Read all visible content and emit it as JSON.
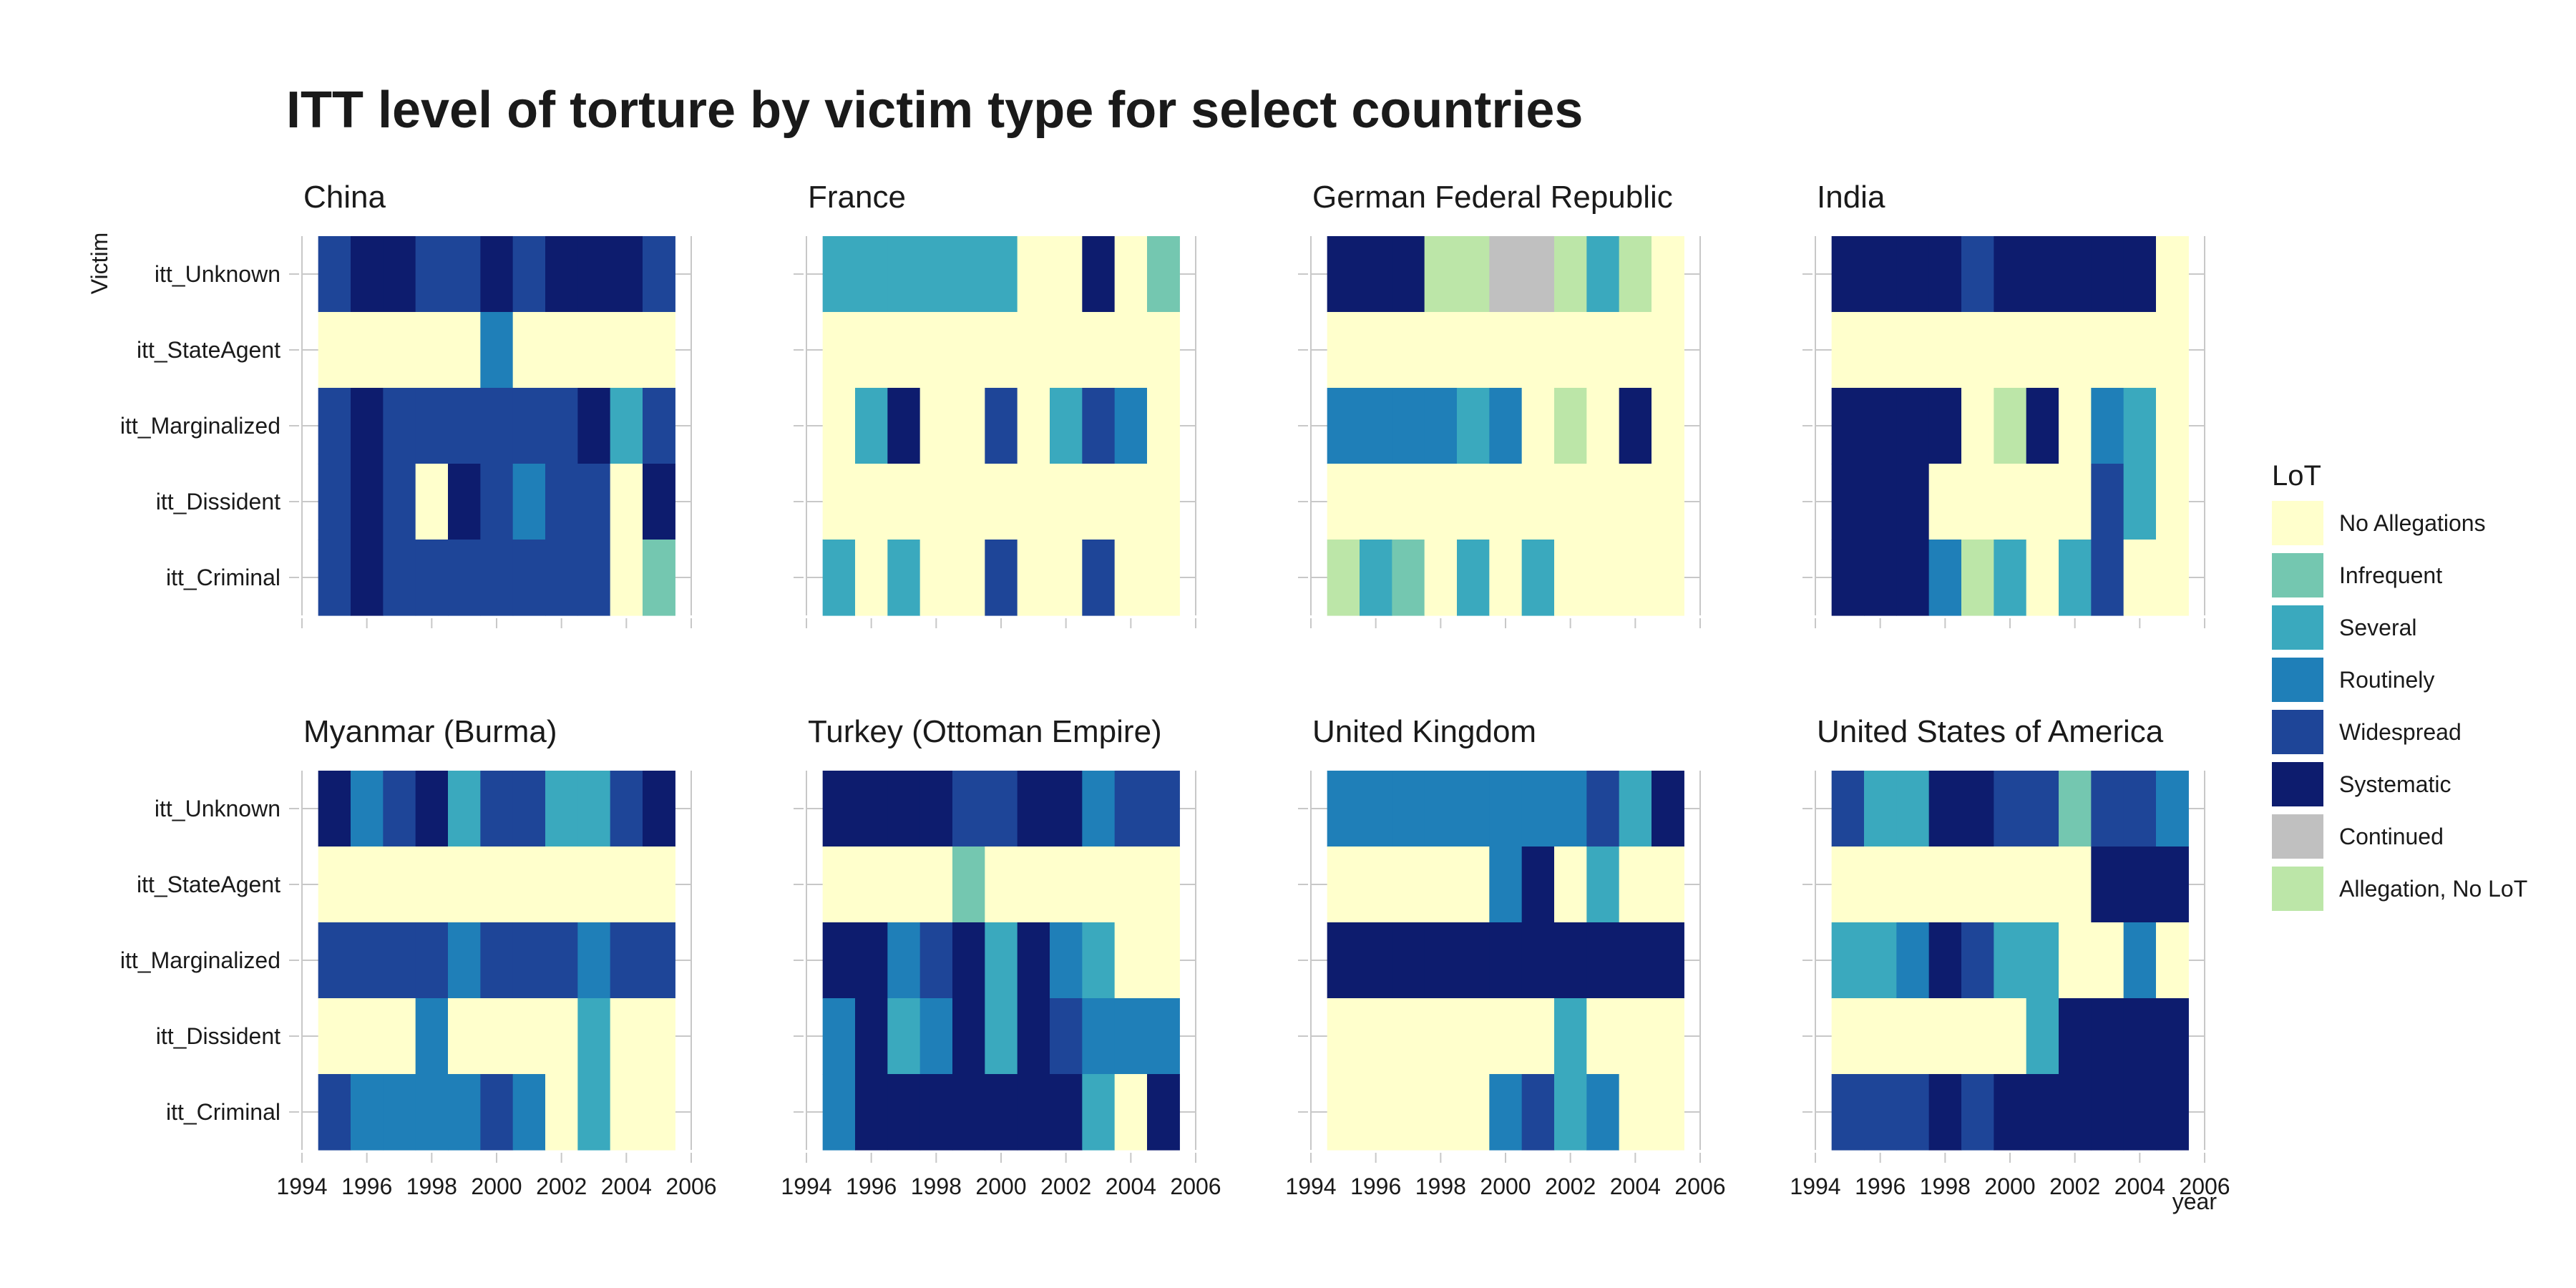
{
  "chart_data": {
    "type": "heatmap",
    "title": "ITT level of torture by victim type for select countries",
    "ylabel": "Victim",
    "xlabel": "year",
    "xlim": [
      1994,
      2006
    ],
    "x_ticks": [
      1994,
      1996,
      1998,
      2000,
      2002,
      2004,
      2006
    ],
    "years": [
      1995,
      1996,
      1997,
      1998,
      1999,
      2000,
      2001,
      2002,
      2003,
      2004,
      2005
    ],
    "rows": [
      "itt_Unknown",
      "itt_StateAgent",
      "itt_Marginalized",
      "itt_Dissident",
      "itt_Criminal"
    ],
    "legend": {
      "title": "LoT",
      "position": "right",
      "levels": [
        {
          "key": "N",
          "label": "No Allegations",
          "color": "#ffffcc"
        },
        {
          "key": "I",
          "label": "Infrequent",
          "color": "#74c7b0"
        },
        {
          "key": "S",
          "label": "Several",
          "color": "#3aa9be"
        },
        {
          "key": "R",
          "label": "Routinely",
          "color": "#1f7fb8"
        },
        {
          "key": "W",
          "label": "Widespread",
          "color": "#1e4598"
        },
        {
          "key": "Y",
          "label": "Systematic",
          "color": "#0d1c6e"
        },
        {
          "key": "C",
          "label": "Continued",
          "color": "#c0c0c0"
        },
        {
          "key": "A",
          "label": "Allegation, No LoT",
          "color": "#bce6a8"
        }
      ]
    },
    "panels": [
      {
        "name": "China",
        "cells": {
          "itt_Unknown": [
            "W",
            "Y",
            "Y",
            "W",
            "W",
            "Y",
            "W",
            "Y",
            "Y",
            "Y",
            "W"
          ],
          "itt_StateAgent": [
            "N",
            "N",
            "N",
            "N",
            "N",
            "R",
            "N",
            "N",
            "N",
            "N",
            "N"
          ],
          "itt_Marginalized": [
            "W",
            "Y",
            "W",
            "W",
            "W",
            "W",
            "W",
            "W",
            "Y",
            "S",
            "W"
          ],
          "itt_Dissident": [
            "W",
            "Y",
            "W",
            "N",
            "Y",
            "W",
            "R",
            "W",
            "W",
            "N",
            "Y"
          ],
          "itt_Criminal": [
            "W",
            "Y",
            "W",
            "W",
            "W",
            "W",
            "W",
            "W",
            "W",
            "N",
            "I"
          ]
        }
      },
      {
        "name": "France",
        "cells": {
          "itt_Unknown": [
            "S",
            "S",
            "S",
            "S",
            "S",
            "S",
            "N",
            "N",
            "Y",
            "N",
            "I"
          ],
          "itt_StateAgent": [
            "N",
            "N",
            "N",
            "N",
            "N",
            "N",
            "N",
            "N",
            "N",
            "N",
            "N"
          ],
          "itt_Marginalized": [
            "N",
            "S",
            "Y",
            "N",
            "N",
            "W",
            "N",
            "S",
            "W",
            "R",
            "N"
          ],
          "itt_Dissident": [
            "N",
            "N",
            "N",
            "N",
            "N",
            "N",
            "N",
            "N",
            "N",
            "N",
            "N"
          ],
          "itt_Criminal": [
            "S",
            "N",
            "S",
            "N",
            "N",
            "W",
            "N",
            "N",
            "W",
            "N",
            "N"
          ]
        }
      },
      {
        "name": "German Federal Republic",
        "cells": {
          "itt_Unknown": [
            "Y",
            "Y",
            "Y",
            "A",
            "A",
            "C",
            "C",
            "A",
            "S",
            "A",
            "N"
          ],
          "itt_StateAgent": [
            "N",
            "N",
            "N",
            "N",
            "N",
            "N",
            "N",
            "N",
            "N",
            "N",
            "N"
          ],
          "itt_Marginalized": [
            "R",
            "R",
            "R",
            "R",
            "S",
            "R",
            "N",
            "A",
            "N",
            "Y",
            "N"
          ],
          "itt_Dissident": [
            "N",
            "N",
            "N",
            "N",
            "N",
            "N",
            "N",
            "N",
            "N",
            "N",
            "N"
          ],
          "itt_Criminal": [
            "A",
            "S",
            "I",
            "N",
            "S",
            "N",
            "S",
            "N",
            "N",
            "N",
            "N"
          ]
        }
      },
      {
        "name": "India",
        "cells": {
          "itt_Unknown": [
            "Y",
            "Y",
            "Y",
            "Y",
            "W",
            "Y",
            "Y",
            "Y",
            "Y",
            "Y",
            "N"
          ],
          "itt_StateAgent": [
            "N",
            "N",
            "N",
            "N",
            "N",
            "N",
            "N",
            "N",
            "N",
            "N",
            "N"
          ],
          "itt_Marginalized": [
            "Y",
            "Y",
            "Y",
            "Y",
            "N",
            "A",
            "Y",
            "N",
            "R",
            "S",
            "N"
          ],
          "itt_Dissident": [
            "Y",
            "Y",
            "Y",
            "N",
            "N",
            "N",
            "N",
            "N",
            "W",
            "S",
            "N"
          ],
          "itt_Criminal": [
            "Y",
            "Y",
            "Y",
            "R",
            "A",
            "S",
            "N",
            "S",
            "W",
            "N",
            "N"
          ]
        }
      },
      {
        "name": "Myanmar (Burma)",
        "cells": {
          "itt_Unknown": [
            "Y",
            "R",
            "W",
            "Y",
            "S",
            "W",
            "W",
            "S",
            "S",
            "W",
            "Y"
          ],
          "itt_StateAgent": [
            "N",
            "N",
            "N",
            "N",
            "N",
            "N",
            "N",
            "N",
            "N",
            "N",
            "N"
          ],
          "itt_Marginalized": [
            "W",
            "W",
            "W",
            "W",
            "R",
            "W",
            "W",
            "W",
            "R",
            "W",
            "W"
          ],
          "itt_Dissident": [
            "N",
            "N",
            "N",
            "R",
            "N",
            "N",
            "N",
            "N",
            "S",
            "N",
            "N"
          ],
          "itt_Criminal": [
            "W",
            "R",
            "R",
            "R",
            "R",
            "W",
            "R",
            "N",
            "S",
            "N",
            "N"
          ]
        }
      },
      {
        "name": "Turkey (Ottoman Empire)",
        "cells": {
          "itt_Unknown": [
            "Y",
            "Y",
            "Y",
            "Y",
            "W",
            "W",
            "Y",
            "Y",
            "R",
            "W",
            "W"
          ],
          "itt_StateAgent": [
            "N",
            "N",
            "N",
            "N",
            "I",
            "N",
            "N",
            "N",
            "N",
            "N",
            "N"
          ],
          "itt_Marginalized": [
            "Y",
            "Y",
            "R",
            "W",
            "Y",
            "S",
            "Y",
            "R",
            "S",
            "N",
            "N"
          ],
          "itt_Dissident": [
            "R",
            "Y",
            "S",
            "R",
            "Y",
            "S",
            "Y",
            "W",
            "R",
            "R",
            "R"
          ],
          "itt_Criminal": [
            "R",
            "Y",
            "Y",
            "Y",
            "Y",
            "Y",
            "Y",
            "Y",
            "S",
            "N",
            "Y"
          ]
        }
      },
      {
        "name": "United Kingdom",
        "cells": {
          "itt_Unknown": [
            "R",
            "R",
            "R",
            "R",
            "R",
            "R",
            "R",
            "R",
            "W",
            "S",
            "Y"
          ],
          "itt_StateAgent": [
            "N",
            "N",
            "N",
            "N",
            "N",
            "R",
            "Y",
            "N",
            "S",
            "N",
            "N"
          ],
          "itt_Marginalized": [
            "Y",
            "Y",
            "Y",
            "Y",
            "Y",
            "Y",
            "Y",
            "Y",
            "Y",
            "Y",
            "Y"
          ],
          "itt_Dissident": [
            "N",
            "N",
            "N",
            "N",
            "N",
            "N",
            "N",
            "S",
            "N",
            "N",
            "N"
          ],
          "itt_Criminal": [
            "N",
            "N",
            "N",
            "N",
            "N",
            "R",
            "W",
            "S",
            "R",
            "N",
            "N"
          ]
        }
      },
      {
        "name": "United States of America",
        "cells": {
          "itt_Unknown": [
            "W",
            "S",
            "S",
            "Y",
            "Y",
            "W",
            "W",
            "I",
            "W",
            "W",
            "R"
          ],
          "itt_StateAgent": [
            "N",
            "N",
            "N",
            "N",
            "N",
            "N",
            "N",
            "N",
            "Y",
            "Y",
            "Y"
          ],
          "itt_Marginalized": [
            "S",
            "S",
            "R",
            "Y",
            "W",
            "S",
            "S",
            "N",
            "N",
            "R",
            "N"
          ],
          "itt_Dissident": [
            "N",
            "N",
            "N",
            "N",
            "N",
            "N",
            "S",
            "Y",
            "Y",
            "Y",
            "Y"
          ],
          "itt_Criminal": [
            "W",
            "W",
            "W",
            "Y",
            "W",
            "Y",
            "Y",
            "Y",
            "Y",
            "Y",
            "Y"
          ]
        }
      }
    ]
  }
}
